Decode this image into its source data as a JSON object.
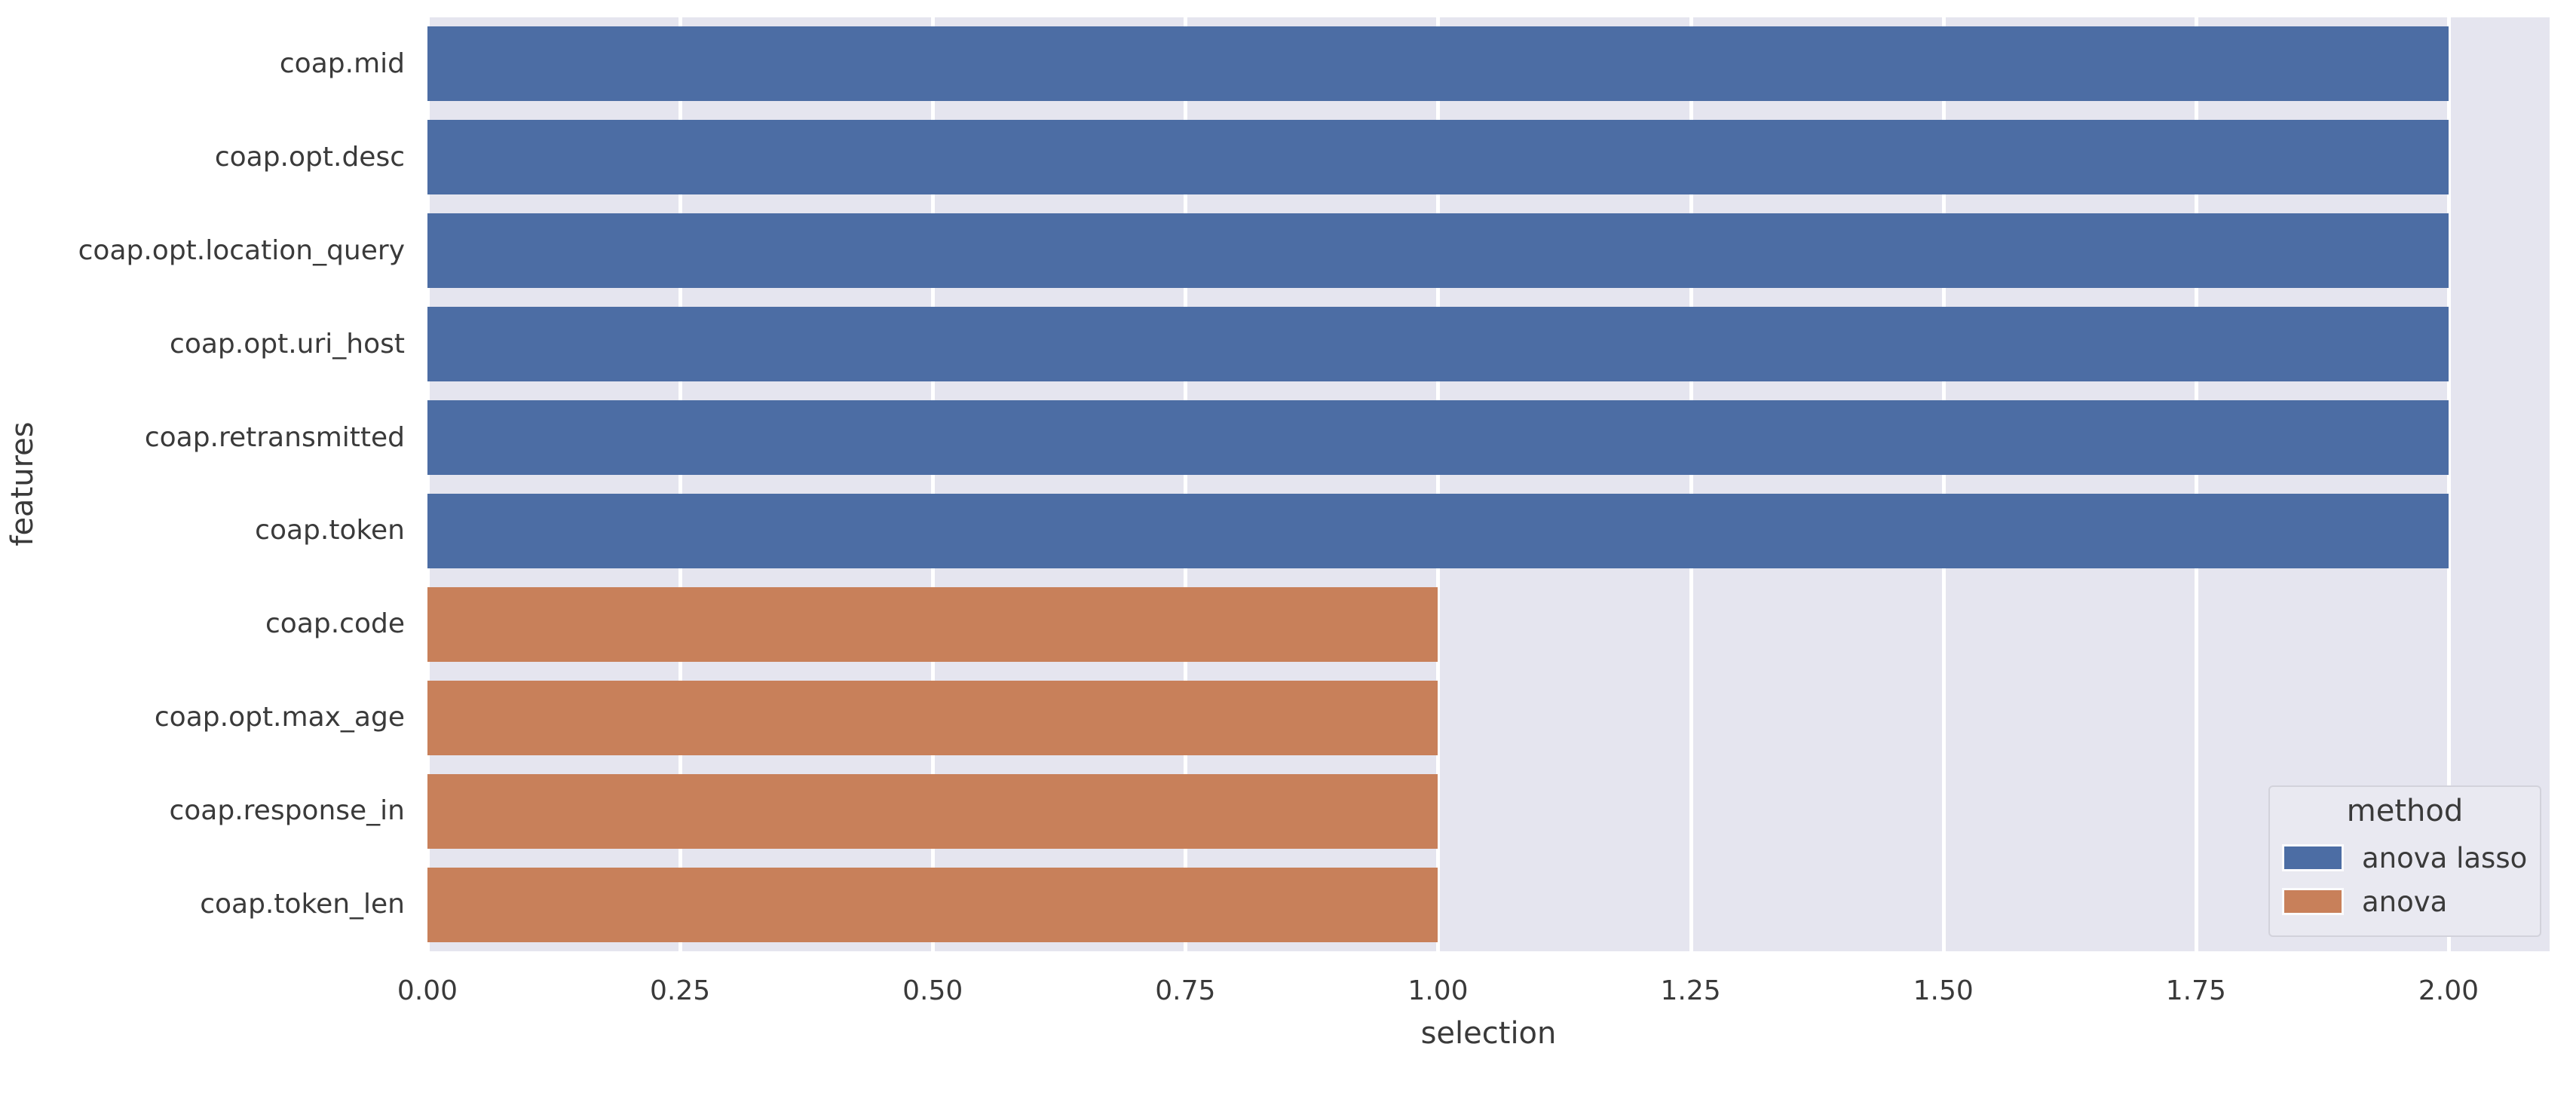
{
  "chart_data": {
    "type": "bar",
    "orientation": "horizontal",
    "title": "",
    "xlabel": "selection",
    "ylabel": "features",
    "xlim": [
      0,
      2.1
    ],
    "grid": true,
    "x_tick_values": [
      0,
      0.25,
      0.5,
      0.75,
      1.0,
      1.25,
      1.5,
      1.75,
      2.0
    ],
    "x_tick_labels": [
      "0.00",
      "0.25",
      "0.50",
      "0.75",
      "1.00",
      "1.25",
      "1.50",
      "1.75",
      "2.00"
    ],
    "categories": [
      "coap.mid",
      "coap.opt.desc",
      "coap.opt.location_query",
      "coap.opt.uri_host",
      "coap.retransmitted",
      "coap.token",
      "coap.code",
      "coap.opt.max_age",
      "coap.response_in",
      "coap.token_len"
    ],
    "values": [
      2,
      2,
      2,
      2,
      2,
      2,
      1,
      1,
      1,
      1
    ],
    "methods": [
      "anova lasso",
      "anova lasso",
      "anova lasso",
      "anova lasso",
      "anova lasso",
      "anova lasso",
      "anova",
      "anova",
      "anova",
      "anova"
    ],
    "series_colors": {
      "anova lasso": "#4c6da4",
      "anova": "#c8805a"
    },
    "plot_background": "#e5e5ef",
    "gridline_color": "#ffffff",
    "legend": {
      "title": "method",
      "position": "lower right",
      "entries": [
        {
          "label": "anova lasso",
          "color": "#4c6da4"
        },
        {
          "label": "anova",
          "color": "#c8805a"
        }
      ]
    }
  }
}
